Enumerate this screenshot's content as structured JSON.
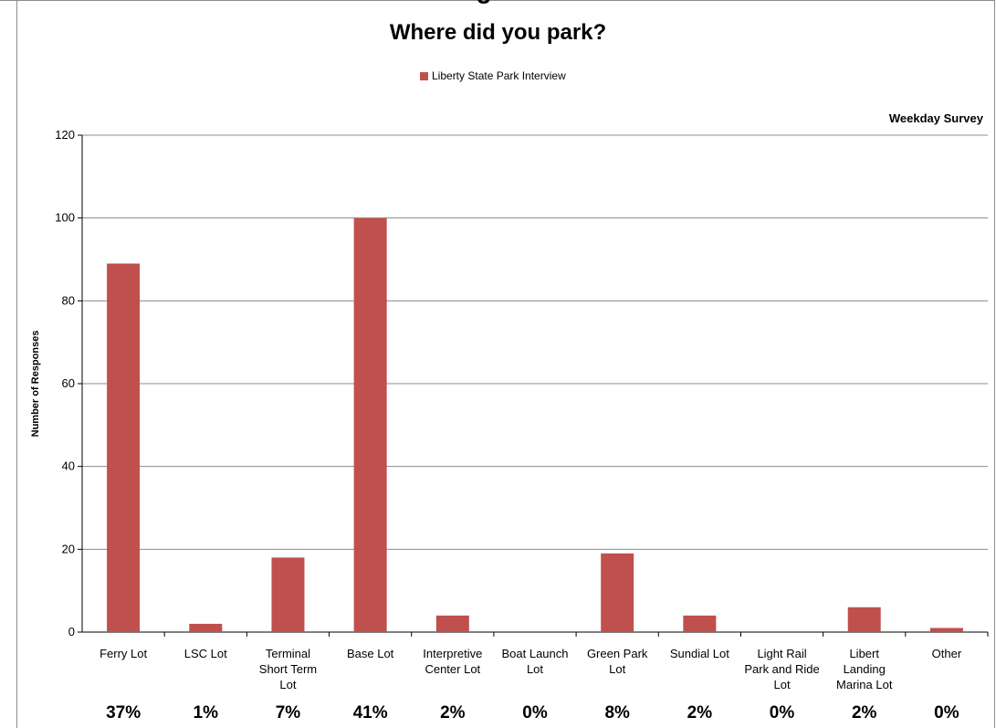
{
  "chart_data": {
    "type": "bar",
    "title": "Where did you park?",
    "partial_title_fragment": "g",
    "annotation": "Weekday Survey",
    "ylabel": "Number of Responses",
    "xlabel": "",
    "ylim": [
      0,
      120
    ],
    "yticks": [
      0,
      20,
      40,
      60,
      80,
      100,
      120
    ],
    "grid": true,
    "legend_position": "top-center",
    "categories": [
      [
        "Ferry Lot"
      ],
      [
        "LSC Lot"
      ],
      [
        "Terminal",
        "Short Term",
        "Lot"
      ],
      [
        "Base Lot"
      ],
      [
        "Interpretive",
        "Center Lot"
      ],
      [
        "Boat Launch",
        "Lot"
      ],
      [
        "Green Park",
        "Lot"
      ],
      [
        "Sundial Lot"
      ],
      [
        "Light Rail",
        "Park and Ride",
        "Lot"
      ],
      [
        "Libert",
        "Landing",
        "Marina Lot"
      ],
      [
        "Other"
      ]
    ],
    "series": [
      {
        "name": "Liberty State Park Interview",
        "color": "#c0504d",
        "values": [
          89,
          2,
          18,
          100,
          4,
          0,
          19,
          4,
          0,
          6,
          1
        ]
      }
    ],
    "percentages": [
      "37%",
      "1%",
      "7%",
      "41%",
      "2%",
      "0%",
      "8%",
      "2%",
      "0%",
      "2%",
      "0%"
    ]
  }
}
